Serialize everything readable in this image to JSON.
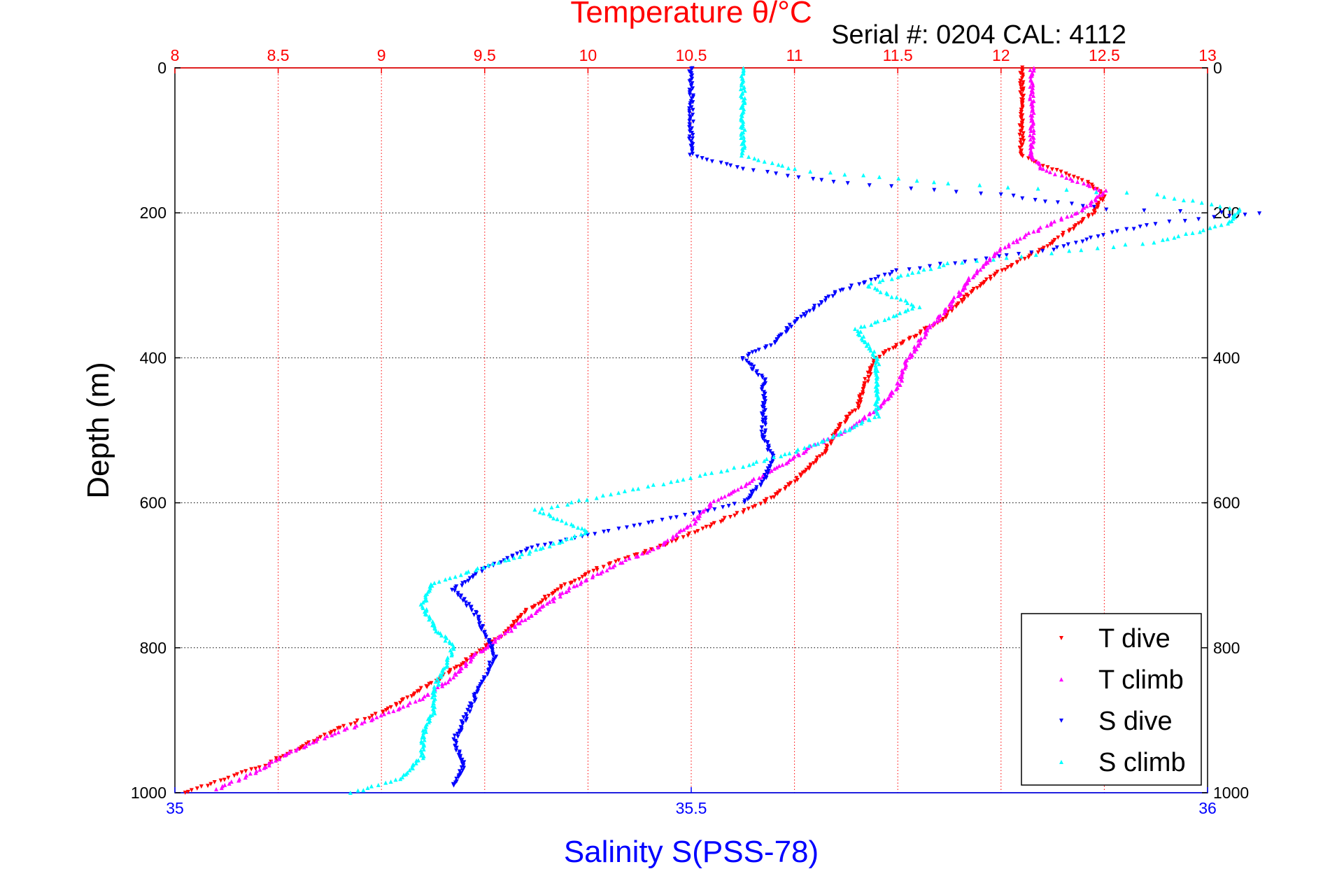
{
  "chart_data": {
    "type": "scatter",
    "title": "Temperature θ/°C",
    "annotation": "Serial #: 0204  CAL: 4112",
    "ylabel": "Depth (m)",
    "xlabel": "Salinity S(PSS-78)",
    "x_top_range": [
      8,
      13
    ],
    "x_top_ticks": [
      "8",
      "8.5",
      "9",
      "9.5",
      "10",
      "10.5",
      "11",
      "11.5",
      "12",
      "12.5",
      "13"
    ],
    "x_bottom_range": [
      35,
      36
    ],
    "x_bottom_ticks": [
      "35",
      "35.5",
      "36"
    ],
    "y_range": [
      0,
      1000
    ],
    "y_reversed": true,
    "y_ticks": [
      "0",
      "200",
      "400",
      "600",
      "800",
      "1000"
    ],
    "grid": true,
    "legend_position": "bottom-right",
    "colors": {
      "temperature": "#ff0000",
      "salinity": "#0000ff",
      "depth": "#000000"
    },
    "series": [
      {
        "name": "T dive",
        "axis": "temperature",
        "color": "#ff0000",
        "marker": "triangle-down",
        "points": [
          [
            12.1,
            0
          ],
          [
            12.1,
            30
          ],
          [
            12.1,
            60
          ],
          [
            12.1,
            90
          ],
          [
            12.1,
            120
          ],
          [
            12.2,
            135
          ],
          [
            12.4,
            155
          ],
          [
            12.5,
            175
          ],
          [
            12.45,
            200
          ],
          [
            12.3,
            230
          ],
          [
            12.2,
            250
          ],
          [
            12.0,
            280
          ],
          [
            11.85,
            310
          ],
          [
            11.7,
            350
          ],
          [
            11.55,
            375
          ],
          [
            11.4,
            400
          ],
          [
            11.35,
            430
          ],
          [
            11.3,
            470
          ],
          [
            11.2,
            500
          ],
          [
            11.15,
            530
          ],
          [
            11.0,
            570
          ],
          [
            10.85,
            600
          ],
          [
            10.6,
            630
          ],
          [
            10.35,
            660
          ],
          [
            10.05,
            690
          ],
          [
            9.85,
            720
          ],
          [
            9.7,
            750
          ],
          [
            9.6,
            780
          ],
          [
            9.45,
            810
          ],
          [
            9.3,
            840
          ],
          [
            9.15,
            865
          ],
          [
            9.0,
            890
          ],
          [
            8.8,
            910
          ],
          [
            8.6,
            940
          ],
          [
            8.45,
            960
          ],
          [
            8.3,
            975
          ],
          [
            8.15,
            990
          ],
          [
            8.05,
            1000
          ]
        ]
      },
      {
        "name": "T climb",
        "axis": "temperature",
        "color": "#ff00ff",
        "marker": "triangle-up",
        "points": [
          [
            12.15,
            0
          ],
          [
            12.15,
            30
          ],
          [
            12.15,
            60
          ],
          [
            12.15,
            90
          ],
          [
            12.15,
            120
          ],
          [
            12.2,
            140
          ],
          [
            12.35,
            155
          ],
          [
            12.5,
            170
          ],
          [
            12.4,
            195
          ],
          [
            12.2,
            220
          ],
          [
            12.0,
            250
          ],
          [
            11.85,
            290
          ],
          [
            11.75,
            330
          ],
          [
            11.65,
            360
          ],
          [
            11.55,
            400
          ],
          [
            11.5,
            440
          ],
          [
            11.4,
            470
          ],
          [
            11.25,
            500
          ],
          [
            11.1,
            520
          ],
          [
            10.95,
            545
          ],
          [
            10.8,
            570
          ],
          [
            10.6,
            600
          ],
          [
            10.5,
            630
          ],
          [
            10.35,
            660
          ],
          [
            10.1,
            690
          ],
          [
            9.9,
            720
          ],
          [
            9.75,
            750
          ],
          [
            9.6,
            780
          ],
          [
            9.45,
            810
          ],
          [
            9.35,
            840
          ],
          [
            9.2,
            870
          ],
          [
            8.95,
            900
          ],
          [
            8.75,
            920
          ],
          [
            8.55,
            945
          ],
          [
            8.4,
            970
          ],
          [
            8.2,
            995
          ]
        ]
      },
      {
        "name": "S dive",
        "axis": "salinity",
        "color": "#0000ff",
        "marker": "triangle-down",
        "points": [
          [
            35.5,
            0
          ],
          [
            35.5,
            30
          ],
          [
            35.5,
            60
          ],
          [
            35.5,
            90
          ],
          [
            35.5,
            120
          ],
          [
            35.55,
            140
          ],
          [
            35.65,
            160
          ],
          [
            35.8,
            175
          ],
          [
            35.9,
            195
          ],
          [
            36.05,
            200
          ],
          [
            35.95,
            215
          ],
          [
            35.9,
            230
          ],
          [
            35.85,
            250
          ],
          [
            35.7,
            280
          ],
          [
            35.64,
            310
          ],
          [
            35.6,
            350
          ],
          [
            35.58,
            380
          ],
          [
            35.55,
            400
          ],
          [
            35.57,
            430
          ],
          [
            35.57,
            470
          ],
          [
            35.57,
            510
          ],
          [
            35.58,
            540
          ],
          [
            35.57,
            570
          ],
          [
            35.55,
            600
          ],
          [
            35.45,
            630
          ],
          [
            35.35,
            660
          ],
          [
            35.3,
            690
          ],
          [
            35.27,
            720
          ],
          [
            35.29,
            750
          ],
          [
            35.3,
            780
          ],
          [
            35.31,
            810
          ],
          [
            35.3,
            840
          ],
          [
            35.29,
            870
          ],
          [
            35.28,
            900
          ],
          [
            35.27,
            930
          ],
          [
            35.28,
            960
          ],
          [
            35.27,
            990
          ]
        ]
      },
      {
        "name": "S climb",
        "axis": "salinity",
        "color": "#00ffff",
        "marker": "triangle-up",
        "points": [
          [
            35.55,
            0
          ],
          [
            35.55,
            30
          ],
          [
            35.55,
            60
          ],
          [
            35.55,
            90
          ],
          [
            35.55,
            120
          ],
          [
            35.6,
            140
          ],
          [
            35.75,
            160
          ],
          [
            35.95,
            175
          ],
          [
            36.03,
            195
          ],
          [
            36.02,
            215
          ],
          [
            35.95,
            240
          ],
          [
            35.75,
            270
          ],
          [
            35.67,
            300
          ],
          [
            35.72,
            330
          ],
          [
            35.66,
            360
          ],
          [
            35.68,
            400
          ],
          [
            35.68,
            440
          ],
          [
            35.68,
            480
          ],
          [
            35.62,
            520
          ],
          [
            35.55,
            550
          ],
          [
            35.45,
            580
          ],
          [
            35.35,
            610
          ],
          [
            35.4,
            640
          ],
          [
            35.32,
            680
          ],
          [
            35.25,
            710
          ],
          [
            35.24,
            740
          ],
          [
            35.25,
            770
          ],
          [
            35.27,
            800
          ],
          [
            35.26,
            830
          ],
          [
            35.25,
            860
          ],
          [
            35.25,
            890
          ],
          [
            35.24,
            920
          ],
          [
            35.24,
            950
          ],
          [
            35.22,
            980
          ],
          [
            35.17,
            1000
          ]
        ]
      }
    ]
  }
}
